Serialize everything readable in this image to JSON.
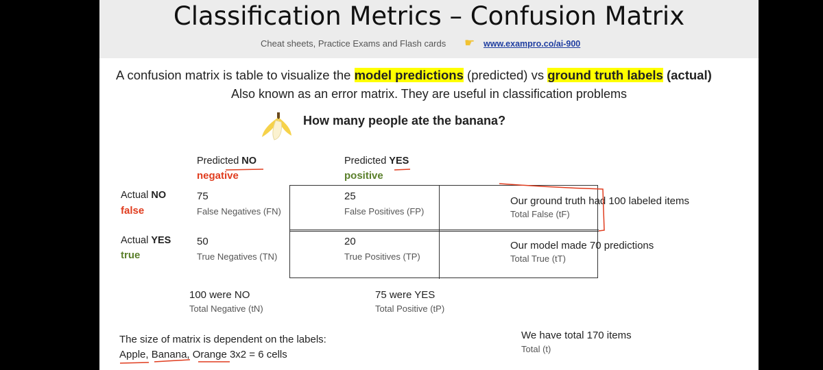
{
  "header": {
    "title": "Classification Metrics – Confusion Matrix",
    "subtitle": "Cheat sheets, Practice Exams and Flash cards",
    "hand_icon": "pointing-hand-icon",
    "link": "www.exampro.co/ai-900"
  },
  "intro": {
    "line1_pre": "A confusion matrix is table to visualize the ",
    "highlight1": "model predictions",
    "line1_mid": " (predicted) vs ",
    "highlight2": "ground truth labels",
    "line1_post": " (actual)",
    "line2": "Also known as an error matrix. They are useful in classification problems"
  },
  "question": {
    "icon": "banana-icon",
    "text": "How many people ate the banana?"
  },
  "columns": [
    {
      "prefix": "Predicted ",
      "value": "NO",
      "sub": "negative"
    },
    {
      "prefix": "Predicted ",
      "value": "YES",
      "sub": "positive"
    }
  ],
  "rows": [
    {
      "prefix": "Actual ",
      "value": "NO",
      "sub": "false"
    },
    {
      "prefix": "Actual ",
      "value": "YES",
      "sub": "true"
    }
  ],
  "cells": [
    {
      "value": "75",
      "label": "False Negatives (FN)"
    },
    {
      "value": "25",
      "label": "False Positives (FP)"
    },
    {
      "value": "50",
      "label": "True Negatives (TN)"
    },
    {
      "value": "20",
      "label": "True Positives (TP)"
    }
  ],
  "row_totals": [
    {
      "main": "Our ground truth had 100 labeled items",
      "sub": "Total False (tF)"
    },
    {
      "main": "Our model made 70 predictions",
      "sub": "Total True (tT)"
    }
  ],
  "col_totals": [
    {
      "main": "100 were  NO",
      "sub": "Total Negative (tN)"
    },
    {
      "main": "75 were  YES",
      "sub": "Total Positive (tP)"
    }
  ],
  "footer": {
    "line1": "The size of matrix is dependent on the labels:",
    "line2": "Apple, Banana, Orange 3x2 = 6 cells"
  },
  "grand_total": {
    "main": "We have total 170 items",
    "sub": "Total (t)"
  },
  "colors": {
    "highlight": "#ffff00",
    "negative": "#e03c1e",
    "positive": "#5a7f2a",
    "ink": "#e03c1e"
  }
}
